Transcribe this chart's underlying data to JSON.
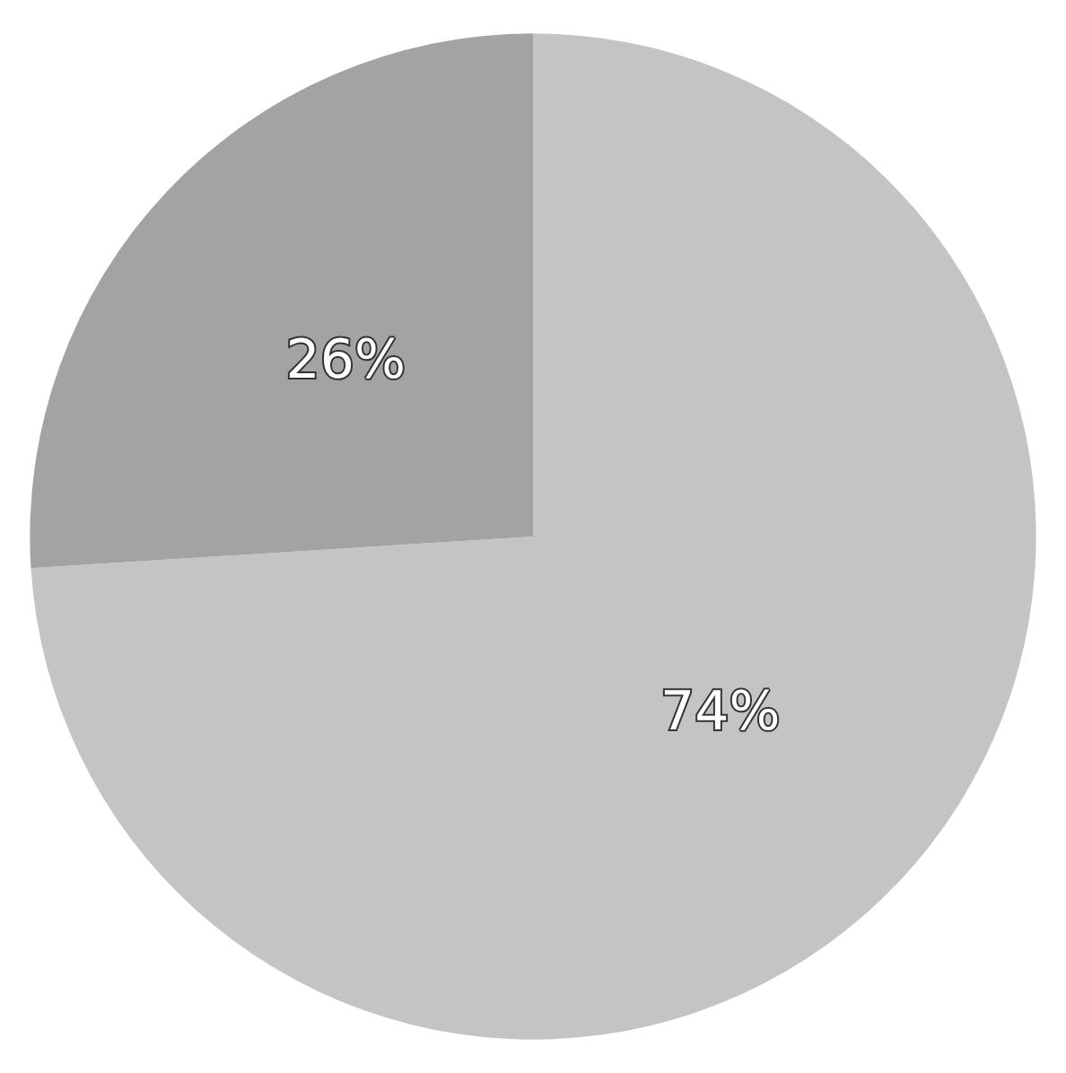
{
  "chart_data": {
    "type": "pie",
    "categories": [
      null,
      null
    ],
    "values": [
      74,
      26
    ],
    "colors": [
      "#c4c4c4",
      "#a3a3a3"
    ],
    "value_labels": [
      "74%",
      "26%"
    ]
  }
}
